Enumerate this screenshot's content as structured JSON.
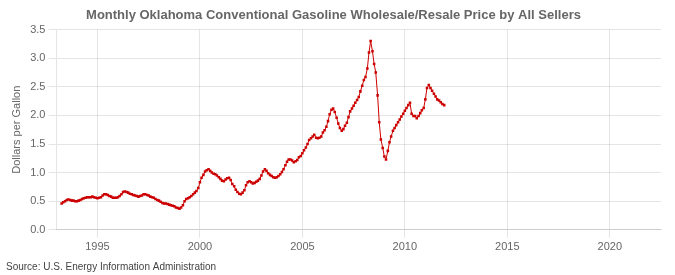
{
  "chart_data": {
    "type": "line",
    "title": "Monthly Oklahoma Conventional Gasoline Wholesale/Resale Price by All Sellers",
    "y_label": "Dollars per Gallon",
    "annotations": [
      "Source: U.S. Energy Information Administration"
    ],
    "color": "#CC0000",
    "marker": "square",
    "line_style": "solid",
    "grid": true,
    "xlim": [
      1993.0,
      2022.5
    ],
    "xticks": [
      1995,
      2000,
      2005,
      2010,
      2015,
      2020
    ],
    "ylim": [
      0.0,
      3.5
    ],
    "yticks": [
      {
        "value": 0,
        "label": "0.0"
      },
      0.5,
      {
        "value": 1,
        "label": "1.0"
      },
      1.5,
      {
        "value": 2,
        "label": "2.0"
      },
      2.5,
      {
        "value": 3,
        "label": "3.0"
      },
      3.5
    ],
    "x": [
      1993.25,
      1993.33,
      1993.42,
      1993.5,
      1993.58,
      1993.67,
      1993.75,
      1993.83,
      1993.92,
      1994.0,
      1994.08,
      1994.17,
      1994.25,
      1994.33,
      1994.42,
      1994.5,
      1994.58,
      1994.67,
      1994.75,
      1994.83,
      1994.92,
      1995.0,
      1995.08,
      1995.17,
      1995.25,
      1995.33,
      1995.42,
      1995.5,
      1995.58,
      1995.67,
      1995.75,
      1995.83,
      1995.92,
      1996.0,
      1996.08,
      1996.17,
      1996.25,
      1996.33,
      1996.42,
      1996.5,
      1996.58,
      1996.67,
      1996.75,
      1996.83,
      1996.92,
      1997.0,
      1997.08,
      1997.17,
      1997.25,
      1997.33,
      1997.42,
      1997.5,
      1997.58,
      1997.67,
      1997.75,
      1997.83,
      1997.92,
      1998.0,
      1998.08,
      1998.17,
      1998.25,
      1998.33,
      1998.42,
      1998.5,
      1998.58,
      1998.67,
      1998.75,
      1998.83,
      1998.92,
      1999.0,
      1999.08,
      1999.17,
      1999.25,
      1999.33,
      1999.42,
      1999.5,
      1999.58,
      1999.67,
      1999.75,
      1999.83,
      1999.92,
      2000.0,
      2000.08,
      2000.17,
      2000.25,
      2000.33,
      2000.42,
      2000.5,
      2000.58,
      2000.67,
      2000.75,
      2000.83,
      2000.92,
      2001.0,
      2001.08,
      2001.17,
      2001.25,
      2001.33,
      2001.42,
      2001.5,
      2001.58,
      2001.67,
      2001.75,
      2001.83,
      2001.92,
      2002.0,
      2002.08,
      2002.17,
      2002.25,
      2002.33,
      2002.42,
      2002.5,
      2002.58,
      2002.67,
      2002.75,
      2002.83,
      2002.92,
      2003.0,
      2003.08,
      2003.17,
      2003.25,
      2003.33,
      2003.42,
      2003.5,
      2003.58,
      2003.67,
      2003.75,
      2003.83,
      2003.92,
      2004.0,
      2004.08,
      2004.17,
      2004.25,
      2004.33,
      2004.42,
      2004.5,
      2004.58,
      2004.67,
      2004.75,
      2004.83,
      2004.92,
      2005.0,
      2005.08,
      2005.17,
      2005.25,
      2005.33,
      2005.42,
      2005.5,
      2005.58,
      2005.67,
      2005.75,
      2005.83,
      2005.92,
      2006.0,
      2006.08,
      2006.17,
      2006.25,
      2006.33,
      2006.42,
      2006.5,
      2006.58,
      2006.67,
      2006.75,
      2006.83,
      2006.92,
      2007.0,
      2007.08,
      2007.17,
      2007.25,
      2007.33,
      2007.42,
      2007.5,
      2007.58,
      2007.67,
      2007.75,
      2007.83,
      2007.92,
      2008.0,
      2008.08,
      2008.17,
      2008.25,
      2008.33,
      2008.42,
      2008.5,
      2008.58,
      2008.67,
      2008.75,
      2008.83,
      2008.92,
      2009.0,
      2009.08,
      2009.17,
      2009.25,
      2009.33,
      2009.42,
      2009.5,
      2009.58,
      2009.67,
      2009.75,
      2009.83,
      2009.92,
      2010.0,
      2010.08,
      2010.17,
      2010.25,
      2010.33,
      2010.42,
      2010.5,
      2010.58,
      2010.67,
      2010.75,
      2010.83,
      2010.92,
      2011.0,
      2011.08,
      2011.17,
      2011.25,
      2011.33,
      2011.42,
      2011.5,
      2011.58,
      2011.67,
      2011.75,
      2011.83,
      2011.92
    ],
    "values": [
      0.46,
      0.48,
      0.5,
      0.52,
      0.53,
      0.52,
      0.51,
      0.51,
      0.5,
      0.5,
      0.51,
      0.52,
      0.54,
      0.55,
      0.56,
      0.57,
      0.57,
      0.57,
      0.58,
      0.57,
      0.56,
      0.55,
      0.56,
      0.57,
      0.6,
      0.62,
      0.62,
      0.61,
      0.59,
      0.58,
      0.56,
      0.56,
      0.56,
      0.57,
      0.59,
      0.62,
      0.66,
      0.67,
      0.66,
      0.65,
      0.63,
      0.62,
      0.61,
      0.6,
      0.59,
      0.58,
      0.59,
      0.6,
      0.62,
      0.62,
      0.61,
      0.6,
      0.58,
      0.57,
      0.56,
      0.54,
      0.52,
      0.51,
      0.49,
      0.47,
      0.46,
      0.46,
      0.45,
      0.44,
      0.43,
      0.42,
      0.41,
      0.39,
      0.38,
      0.37,
      0.39,
      0.43,
      0.5,
      0.54,
      0.55,
      0.57,
      0.59,
      0.62,
      0.65,
      0.68,
      0.73,
      0.83,
      0.91,
      0.96,
      1.02,
      1.04,
      1.06,
      1.03,
      1.0,
      0.98,
      0.97,
      0.95,
      0.92,
      0.89,
      0.86,
      0.85,
      0.88,
      0.9,
      0.91,
      0.87,
      0.8,
      0.76,
      0.7,
      0.66,
      0.63,
      0.62,
      0.65,
      0.69,
      0.78,
      0.83,
      0.85,
      0.83,
      0.81,
      0.82,
      0.84,
      0.86,
      0.89,
      0.95,
      1.02,
      1.06,
      1.03,
      0.99,
      0.96,
      0.94,
      0.92,
      0.91,
      0.92,
      0.94,
      0.97,
      1.01,
      1.06,
      1.13,
      1.19,
      1.23,
      1.23,
      1.21,
      1.18,
      1.2,
      1.22,
      1.27,
      1.29,
      1.34,
      1.39,
      1.44,
      1.5,
      1.57,
      1.6,
      1.63,
      1.66,
      1.61,
      1.6,
      1.61,
      1.63,
      1.7,
      1.74,
      1.8,
      1.9,
      2.02,
      2.1,
      2.12,
      2.06,
      1.96,
      1.86,
      1.78,
      1.73,
      1.76,
      1.82,
      1.87,
      1.97,
      2.07,
      2.12,
      2.17,
      2.22,
      2.27,
      2.32,
      2.42,
      2.52,
      2.62,
      2.67,
      2.82,
      3.1,
      3.3,
      3.12,
      2.9,
      2.75,
      2.35,
      1.88,
      1.58,
      1.43,
      1.28,
      1.23,
      1.38,
      1.53,
      1.63,
      1.73,
      1.78,
      1.83,
      1.88,
      1.93,
      1.98,
      2.03,
      2.08,
      2.13,
      2.18,
      2.22,
      2.03,
      1.99,
      1.99,
      1.95,
      1.99,
      2.04,
      2.09,
      2.13,
      2.28,
      2.48,
      2.53,
      2.48,
      2.43,
      2.38,
      2.33,
      2.28,
      2.26,
      2.23,
      2.2,
      2.18
    ]
  }
}
